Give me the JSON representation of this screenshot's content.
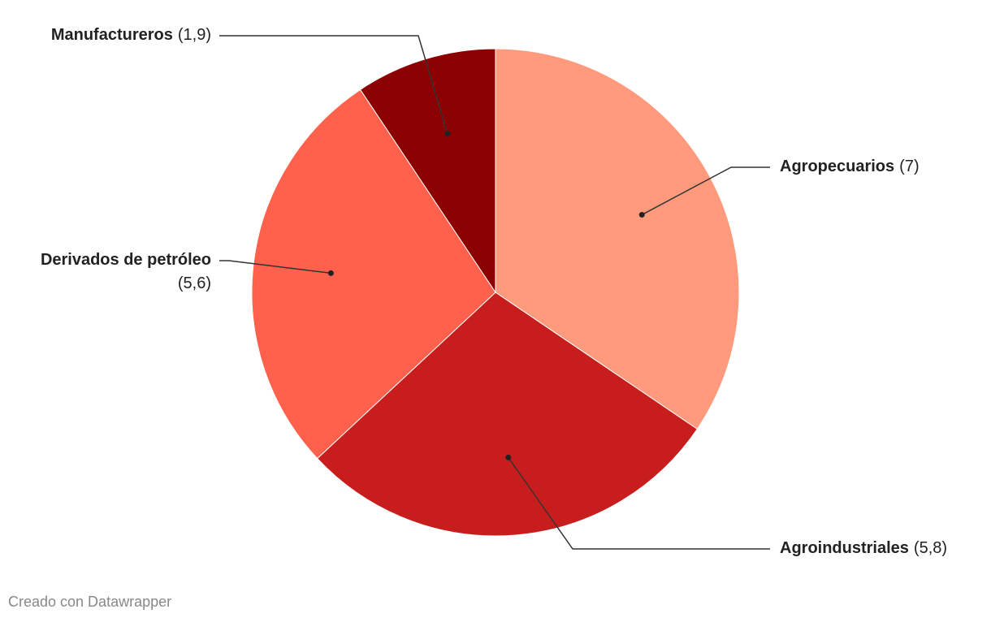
{
  "chart_data": {
    "type": "pie",
    "categories": [
      "Agropecuarios",
      "Agroindustriales",
      "Derivados de petróleo",
      "Manufactureros"
    ],
    "values": [
      7,
      5.8,
      5.6,
      1.9
    ],
    "value_labels": [
      "(7)",
      "(5,8)",
      "(5,6)",
      "(1,9)"
    ],
    "colors": [
      "#ff9a7d",
      "#c71e1d",
      "#ff614c",
      "#8b0000"
    ],
    "credit": "Creado con Datawrapper"
  }
}
